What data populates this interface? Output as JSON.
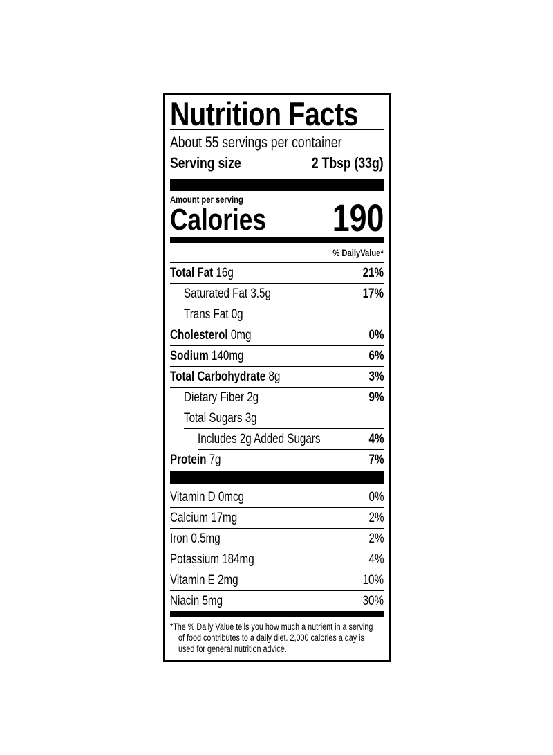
{
  "title": "Nutrition Facts",
  "servings_per_container": "About 55 servings per container",
  "serving_size_label": "Serving size",
  "serving_size_value": "2 Tbsp (33g)",
  "amount_per_serving": "Amount per serving",
  "calories_label": "Calories",
  "calories_value": "190",
  "daily_value_header": "% DailyValue*",
  "nutrients": [
    {
      "name": "Total Fat",
      "amount": "16g",
      "dv": "21%",
      "bold": true,
      "indent": 0
    },
    {
      "name": "Saturated Fat",
      "amount": "3.5g",
      "dv": "17%",
      "bold": false,
      "indent": 1
    },
    {
      "name": "Trans Fat",
      "amount": "0g",
      "dv": "",
      "bold": false,
      "indent": 1
    },
    {
      "name": "Cholesterol",
      "amount": "0mg",
      "dv": "0%",
      "bold": true,
      "indent": 0
    },
    {
      "name": "Sodium",
      "amount": "140mg",
      "dv": "6%",
      "bold": true,
      "indent": 0
    },
    {
      "name": "Total Carbohydrate",
      "amount": "8g",
      "dv": "3%",
      "bold": true,
      "indent": 0
    },
    {
      "name": "Dietary Fiber",
      "amount": "2g",
      "dv": "9%",
      "bold": false,
      "indent": 1
    },
    {
      "name": "Total Sugars",
      "amount": "3g",
      "dv": "",
      "bold": false,
      "indent": 1
    },
    {
      "name": "Includes 2g Added Sugars",
      "amount": "",
      "dv": "4%",
      "bold": false,
      "indent": 2
    },
    {
      "name": "Protein",
      "amount": "7g",
      "dv": "7%",
      "bold": true,
      "indent": 0
    }
  ],
  "vitamins": [
    {
      "name": "Vitamin D",
      "amount": "0mcg",
      "dv": "0%"
    },
    {
      "name": "Calcium",
      "amount": "17mg",
      "dv": "2%"
    },
    {
      "name": "Iron",
      "amount": "0.5mg",
      "dv": "2%"
    },
    {
      "name": "Potassium",
      "amount": "184mg",
      "dv": "4%"
    },
    {
      "name": "Vitamin E",
      "amount": "2mg",
      "dv": "10%"
    },
    {
      "name": "Niacin",
      "amount": "5mg",
      "dv": "30%"
    }
  ],
  "footnote": [
    "*The % Daily Value tells you how much a nutrient in a serving",
    "of food contributes to a daily diet. 2,000 calories a day is",
    "used for general nutrition advice."
  ]
}
